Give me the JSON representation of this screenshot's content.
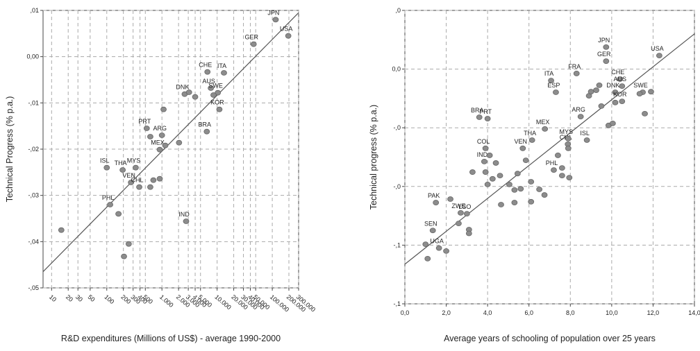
{
  "chart_data": [
    {
      "type": "scatter",
      "xscale": "log",
      "grid": true,
      "color": "#8c8c8c",
      "xlabel": "R&D expenditures (Millions of US$) - average 1990-2000",
      "ylabel": "Technical Progress (% p.a.)",
      "xlim": [
        7,
        300000
      ],
      "ylim": [
        -0.05,
        0.01
      ],
      "xticks": [
        10,
        20,
        30,
        50,
        100,
        200,
        300,
        400,
        500,
        {
          "value": 1000,
          "label": "1.000"
        },
        {
          "value": 2000,
          "label": "2.000"
        },
        {
          "value": 3000,
          "label": "3.000"
        },
        {
          "value": 4000,
          "label": "4.000"
        },
        {
          "value": 5000,
          "label": "5.000"
        },
        {
          "value": 10000,
          "label": "10.000"
        },
        {
          "value": 20000,
          "label": "20.000"
        },
        {
          "value": 30000,
          "label": "30.000"
        },
        {
          "value": 40000,
          "label": "40.000"
        },
        {
          "value": 50000,
          "label": "50.000"
        },
        {
          "value": 100000,
          "label": "100.000"
        },
        {
          "value": 200000,
          "label": "200.000"
        },
        {
          "value": 300000,
          "label": "300.000"
        }
      ],
      "yticks": [
        {
          "value": 0.01,
          "label": ",01"
        },
        {
          "value": 0,
          "label": "0,00"
        },
        {
          "value": -0.01,
          "label": "-,01"
        },
        {
          "value": -0.02,
          "label": "-,02"
        },
        {
          "value": -0.03,
          "label": "-,03"
        },
        {
          "value": -0.04,
          "label": "-,04"
        },
        {
          "value": -0.05,
          "label": "-,05"
        }
      ],
      "x": [
        15,
        100,
        194,
        335,
        275,
        388,
        615,
        700,
        912,
        115,
        163,
        250,
        205,
        530,
        1000,
        615,
        912,
        1150,
        1070,
        2040,
        2580,
        3100,
        4000,
        6680,
        7700,
        10300,
        8600,
        13300,
        11000,
        6500,
        2740,
        45900,
        115000,
        195000
      ],
      "values": [
        -0.0375,
        -0.024,
        -0.0245,
        -0.024,
        -0.0272,
        -0.0282,
        -0.0282,
        -0.0267,
        -0.0264,
        -0.032,
        -0.034,
        -0.0405,
        -0.0432,
        -0.0155,
        -0.017,
        -0.0173,
        -0.0201,
        -0.0192,
        -0.0114,
        -0.0186,
        -0.0081,
        -0.0077,
        -0.0087,
        -0.0033,
        -0.0068,
        -0.0078,
        -0.0083,
        -0.0035,
        -0.0114,
        -0.0162,
        -0.0356,
        0.0027,
        0.008,
        0.0045
      ],
      "point_labels": [
        null,
        "ISL",
        "THA",
        "MYS",
        "VEN",
        "CHL",
        null,
        null,
        null,
        "PHL",
        null,
        null,
        null,
        "PRT",
        "ARG",
        null,
        "MEX",
        null,
        null,
        null,
        "DNK",
        null,
        null,
        "CHE",
        "AUS",
        "SWE",
        null,
        "ITA",
        "KOR",
        "BRA",
        "IND",
        "GER",
        "JPN",
        "USA"
      ],
      "trend": {
        "x": [
          7,
          300000
        ],
        "values": [
          -0.0465,
          0.0095
        ]
      }
    },
    {
      "type": "scatter",
      "xscale": "linear",
      "grid": true,
      "color": "#8c8c8c",
      "xlabel": "Average years of schooling of population over 25 years",
      "ylabel": "Technical progress (% p.a.)",
      "xlim": [
        0,
        14
      ],
      "ylim": [
        -0.08,
        0.02
      ],
      "xticks": [
        {
          "value": 0,
          "label": "0,0"
        },
        {
          "value": 2,
          "label": "2,0"
        },
        {
          "value": 4,
          "label": "4,0"
        },
        {
          "value": 6,
          "label": "6,0"
        },
        {
          "value": 8,
          "label": "8,0"
        },
        {
          "value": 10,
          "label": "10,0"
        },
        {
          "value": 12,
          "label": "12,0"
        },
        {
          "value": 14,
          "label": "14,0"
        }
      ],
      "yticks": [
        {
          "value": 0.02,
          "label": ",0"
        },
        {
          "value": 0,
          "label": "0,0"
        },
        {
          "value": -0.02,
          "label": "-,0"
        },
        {
          "value": -0.04,
          "label": "-,0"
        },
        {
          "value": -0.06,
          "label": "-,1"
        },
        {
          "value": -0.08,
          "label": "-,1"
        }
      ],
      "x": [
        1.35,
        1.0,
        1.1,
        1.65,
        2.0,
        1.5,
        2.2,
        2.7,
        2.6,
        3.0,
        3.1,
        3.1,
        3.27,
        3.84,
        3.9,
        4.0,
        4.1,
        3.9,
        4.24,
        4.6,
        4.4,
        4.65,
        5.05,
        5.3,
        5.3,
        5.45,
        5.6,
        6.1,
        6.1,
        5.85,
        5.7,
        6.15,
        3.6,
        4.0,
        6.77,
        7.07,
        7.3,
        8.3,
        6.5,
        6.75,
        7.2,
        7.4,
        7.6,
        7.6,
        7.95,
        7.88,
        7.9,
        7.9,
        8.5,
        8.8,
        8.9,
        9.0,
        9.5,
        9.85,
        10.05,
        9.25,
        9.4,
        9.73,
        9.73,
        10.4,
        10.5,
        10.17,
        10.5,
        10.17,
        11.5,
        11.35,
        11.9,
        11.6,
        12.3
      ],
      "values": [
        -0.055,
        -0.0597,
        -0.0646,
        -0.061,
        -0.062,
        -0.0455,
        -0.0443,
        -0.049,
        -0.0526,
        -0.0493,
        -0.0547,
        -0.056,
        -0.0351,
        -0.0315,
        -0.0351,
        -0.0393,
        -0.0294,
        -0.027,
        -0.0374,
        -0.0363,
        -0.032,
        -0.0462,
        -0.0393,
        -0.0412,
        -0.0455,
        -0.0356,
        -0.0408,
        -0.0384,
        -0.0452,
        -0.0311,
        -0.027,
        -0.0242,
        -0.0164,
        -0.0169,
        -0.0204,
        -0.0039,
        -0.0079,
        -0.0015,
        -0.041,
        -0.0429,
        -0.0344,
        -0.0294,
        -0.0337,
        -0.0363,
        -0.037,
        -0.0256,
        -0.027,
        -0.0237,
        -0.0162,
        -0.0242,
        -0.0091,
        -0.0077,
        -0.0126,
        -0.0192,
        -0.0185,
        -0.0072,
        -0.0055,
        0.0075,
        0.0027,
        -0.0034,
        -0.0058,
        -0.0079,
        -0.011,
        -0.0114,
        -0.0079,
        -0.0084,
        -0.0077,
        -0.0152,
        0.0046
      ],
      "point_labels": [
        "SEN",
        null,
        null,
        "UGA",
        null,
        "PAK",
        null,
        "ZWE",
        null,
        "LSO",
        null,
        null,
        null,
        "IND",
        null,
        null,
        null,
        "COL",
        null,
        null,
        null,
        null,
        null,
        null,
        null,
        null,
        null,
        null,
        null,
        null,
        "VEN",
        "THA",
        "BRA",
        "PRT",
        "MEX",
        "ITA",
        "ESP",
        "FRA",
        null,
        null,
        "PHL",
        null,
        null,
        null,
        null,
        "CHL",
        null,
        "MYS",
        "ARG",
        "ISL",
        null,
        null,
        null,
        null,
        null,
        null,
        null,
        "JPN",
        "GER",
        "CHE",
        "AUS",
        "DNK",
        "KOR",
        null,
        "SWE",
        null,
        null,
        null,
        "USA"
      ],
      "trend": {
        "x": [
          0,
          14
        ],
        "values": [
          -0.0665,
          0.012
        ]
      }
    }
  ]
}
